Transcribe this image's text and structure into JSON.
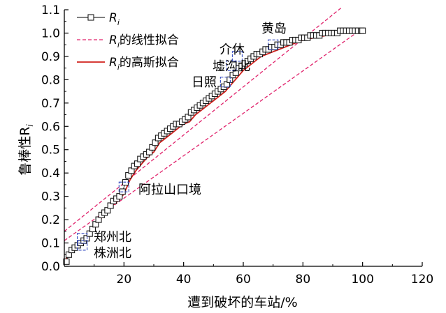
{
  "chart_data": {
    "type": "line",
    "xlabel": "遭到破坏的车站/%",
    "ylabel": "鲁棒性R",
    "ylabel_subscript": "i",
    "xlim": [
      0,
      120
    ],
    "ylim": [
      0,
      1.1
    ],
    "xticks": [
      20,
      40,
      60,
      80,
      100,
      120
    ],
    "yticks": [
      0.0,
      0.1,
      0.2,
      0.3,
      0.4,
      0.5,
      0.6,
      0.7,
      0.8,
      0.9,
      1.0,
      1.1
    ],
    "ytick_labels": [
      "0.0",
      "0.1",
      "0.2",
      "0.3",
      "0.4",
      "0.5",
      "0.6",
      "0.7",
      "0.8",
      "0.9",
      "1.0",
      "1.1"
    ],
    "legend": {
      "placement": "top-left",
      "entries": [
        {
          "label_main": "R",
          "label_sub": "i",
          "label_rest": ""
        },
        {
          "label_main": "R",
          "label_sub": "i",
          "label_rest": "的线性拟合"
        },
        {
          "label_main": "R",
          "label_sub": "i",
          "label_rest": "的高斯拟合"
        }
      ]
    },
    "colors": {
      "data": "#1a1a1a",
      "linear": "#e0226b",
      "gauss": "#d0201c",
      "highlight": "#3f54c4"
    },
    "series": [
      {
        "name": "R_i",
        "marker": "square",
        "x": [
          0.7,
          1.5,
          2.5,
          3.5,
          4.5,
          5.5,
          6.5,
          7.5,
          8.5,
          9.5,
          10.5,
          11.5,
          12.5,
          13.5,
          14.5,
          15.5,
          16.5,
          17.5,
          18.5,
          19.5,
          20.5,
          21.5,
          22.5,
          23.5,
          24.5,
          25.5,
          26.5,
          27.5,
          28.5,
          29.5,
          30.5,
          31.5,
          32.5,
          33.5,
          34.5,
          35.5,
          36.5,
          37.5,
          38.5,
          39.5,
          40.5,
          41.5,
          42.5,
          43.5,
          44.5,
          45.5,
          46.5,
          47.5,
          48.5,
          49.5,
          50.5,
          51.5,
          52.5,
          53.5,
          54.5,
          55.5,
          56.5,
          57.5,
          58.5,
          59.5,
          60.5,
          61.5,
          62.5,
          63.5,
          64.5,
          65.5,
          66.5,
          67.5,
          68.5,
          69.5,
          70.5,
          71.5,
          72.5,
          73.5,
          74.5,
          75.5,
          76.5,
          77.5,
          78.5,
          79.5,
          80.5,
          81.5,
          82.5,
          83.5,
          84.5,
          85.5,
          86.5,
          87.5,
          88.5,
          89.5,
          90.5,
          91.5,
          92.5,
          93.5,
          94.5,
          95.5,
          96.5,
          97.5,
          98.5,
          99.5,
          100.0
        ],
        "y": [
          0.02,
          0.05,
          0.07,
          0.08,
          0.09,
          0.1,
          0.11,
          0.12,
          0.14,
          0.16,
          0.18,
          0.2,
          0.22,
          0.23,
          0.24,
          0.26,
          0.28,
          0.29,
          0.3,
          0.32,
          0.36,
          0.39,
          0.41,
          0.43,
          0.44,
          0.46,
          0.47,
          0.48,
          0.49,
          0.51,
          0.53,
          0.55,
          0.56,
          0.57,
          0.58,
          0.59,
          0.6,
          0.61,
          0.61,
          0.62,
          0.63,
          0.64,
          0.66,
          0.67,
          0.68,
          0.69,
          0.7,
          0.71,
          0.72,
          0.73,
          0.74,
          0.75,
          0.76,
          0.77,
          0.78,
          0.8,
          0.82,
          0.83,
          0.85,
          0.86,
          0.87,
          0.88,
          0.89,
          0.9,
          0.91,
          0.91,
          0.92,
          0.93,
          0.93,
          0.94,
          0.94,
          0.95,
          0.95,
          0.96,
          0.96,
          0.96,
          0.97,
          0.97,
          0.97,
          0.98,
          0.98,
          0.98,
          0.99,
          0.99,
          0.99,
          0.99,
          1.0,
          1.0,
          1.0,
          1.0,
          1.0,
          1.0,
          1.01,
          1.01,
          1.01,
          1.01,
          1.01,
          1.01,
          1.01,
          1.01,
          1.01
        ]
      },
      {
        "name": "linear_fit_upper",
        "x": [
          0,
          93
        ],
        "y": [
          0.15,
          1.11
        ]
      },
      {
        "name": "linear_fit_lower",
        "x": [
          0,
          100
        ],
        "y": [
          0.11,
          1.02
        ]
      },
      {
        "name": "gauss_fit",
        "x": [
          0,
          2,
          4,
          6,
          8,
          10,
          12,
          14,
          16,
          18,
          20,
          22,
          24,
          26,
          28,
          30,
          32,
          34,
          36,
          38,
          40,
          42,
          44,
          46,
          48,
          50,
          52,
          54,
          56,
          58,
          60,
          62,
          64,
          66,
          68,
          70,
          72,
          74,
          76,
          78,
          80,
          82,
          84,
          86,
          88,
          90,
          92,
          94,
          96,
          98,
          100
        ],
        "y": [
          0.02,
          0.06,
          0.08,
          0.1,
          0.13,
          0.16,
          0.2,
          0.23,
          0.26,
          0.28,
          0.31,
          0.37,
          0.41,
          0.44,
          0.47,
          0.49,
          0.53,
          0.55,
          0.57,
          0.59,
          0.61,
          0.62,
          0.65,
          0.67,
          0.69,
          0.71,
          0.73,
          0.75,
          0.78,
          0.81,
          0.84,
          0.86,
          0.88,
          0.9,
          0.91,
          0.92,
          0.93,
          0.94,
          0.95,
          0.96,
          0.97,
          0.975,
          0.98,
          0.985,
          0.99,
          0.995,
          1.0,
          1.0,
          1.005,
          1.005,
          1.01
        ]
      }
    ],
    "annotations": [
      {
        "text": "黄岛",
        "x": 70,
        "y": 0.95
      },
      {
        "text": "介休",
        "x": 58,
        "y": 0.9
      },
      {
        "text": "墟沟北",
        "x": 56,
        "y": 0.86
      },
      {
        "text": "日照",
        "x": 54,
        "y": 0.79
      },
      {
        "text": "阿拉山口境",
        "x": 20,
        "y": 0.34
      },
      {
        "text": "郑州北",
        "x": 6,
        "y": 0.12
      },
      {
        "text": "株洲北",
        "x": 6,
        "y": 0.09
      }
    ]
  }
}
